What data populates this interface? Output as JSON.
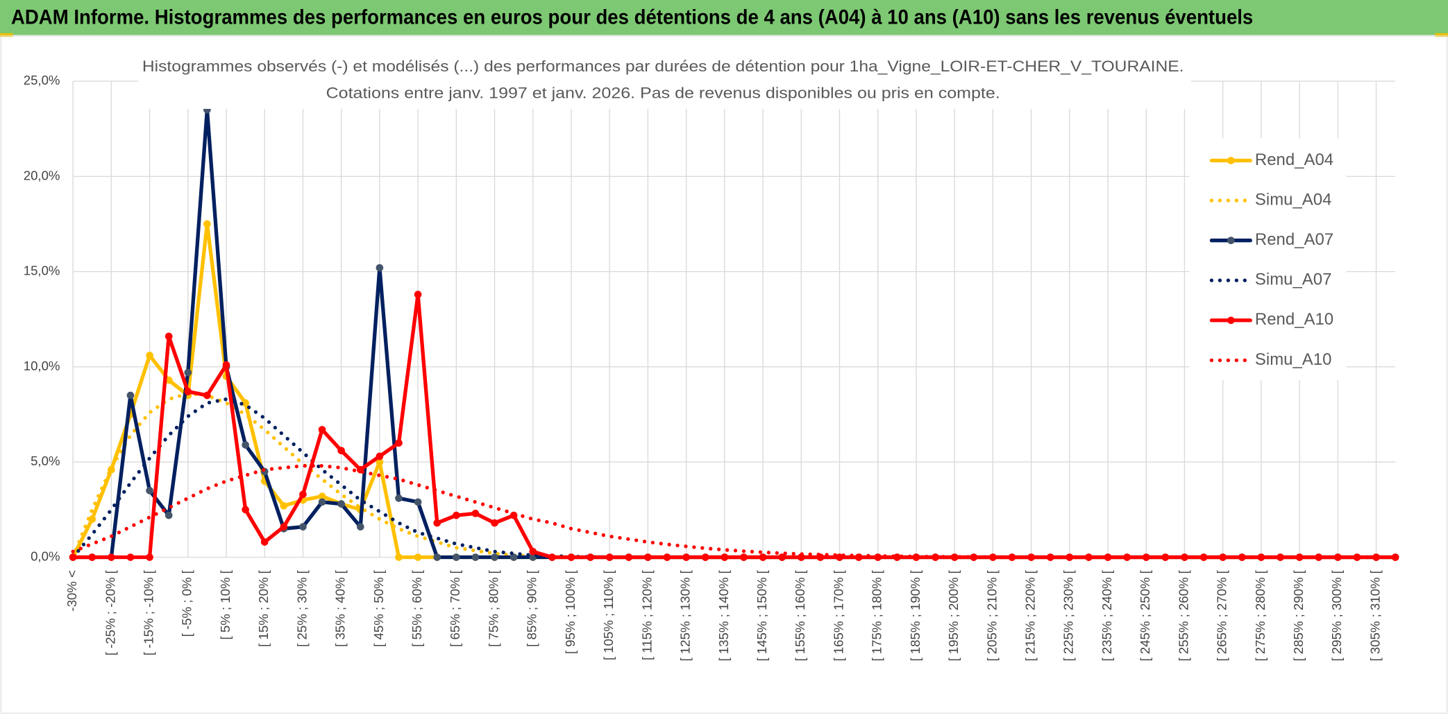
{
  "chart_data": {
    "type": "line",
    "title": "ADAM Informe. Histogrammes des performances en euros pour des détentions de 4 ans (A04) à 10 ans (A10) sans les revenus éventuels",
    "subtitle": [
      "Histogrammes observés (-) et modélisés (...) des performances par durées de détention pour 1ha_Vigne_LOIR-ET-CHER_V_TOURAINE.",
      "Cotations entre janv. 1997 et janv. 2026. Pas de revenus disponibles ou pris en compte."
    ],
    "categories": [
      "-30% <",
      null,
      "[ -25% ; -20% [",
      null,
      "[ -15% ; -10% [",
      null,
      "[ -5% ; 0% [",
      null,
      "[ 5% ; 10% [",
      null,
      "[ 15% ; 20% [",
      null,
      "[ 25% ; 30% [",
      null,
      "[ 35% ; 40% [",
      null,
      "[ 45% ; 50% [",
      null,
      "[ 55% ; 60% [",
      null,
      "[ 65% ; 70% [",
      null,
      "[ 75% ; 80% [",
      null,
      "[ 85% ; 90% [",
      null,
      "[ 95% ; 100% [",
      null,
      "[ 105% ; 110% [",
      null,
      "[ 115% ; 120% [",
      null,
      "[ 125% ; 130% [",
      null,
      "[ 135% ; 140% [",
      null,
      "[ 145% ; 150% [",
      null,
      "[ 155% ; 160% [",
      null,
      "[ 165% ; 170% [",
      null,
      "[ 175% ; 180% [",
      null,
      "[ 185% ; 190% [",
      null,
      "[ 195% ; 200% [",
      null,
      "[ 205% ; 210% [",
      null,
      "[ 215% ; 220% [",
      null,
      "[ 225% ; 230% [",
      null,
      "[ 235% ; 240% [",
      null,
      "[ 245% ; 250% [",
      null,
      "[ 255% ; 260% [",
      null,
      "[ 265% ; 270% [",
      null,
      "[ 275% ; 280% [",
      null,
      "[ 285% ; 290% [",
      null,
      "[ 295% ; 300% [",
      null,
      "[ 305% ; 310% [",
      null
    ],
    "series": [
      {
        "name": "Rend_A04",
        "color": "#ffc000",
        "line_style": "solid",
        "markers": true,
        "values": [
          0,
          2,
          4.6,
          7.5,
          10.6,
          9.3,
          8.5,
          17.5,
          9.5,
          8.1,
          4.0,
          2.7,
          3.0,
          3.2,
          2.8,
          2.5,
          5.0,
          0,
          0,
          0,
          0,
          0,
          0,
          0,
          0,
          0,
          0,
          0,
          0,
          0,
          0,
          0,
          0,
          0,
          0,
          0,
          0,
          0,
          0,
          0,
          0,
          0,
          0,
          0,
          0,
          0,
          0,
          0,
          0,
          0,
          0,
          0,
          0,
          0,
          0,
          0,
          0,
          0,
          0,
          0,
          0,
          0,
          0,
          0,
          0,
          0,
          0,
          0,
          0,
          0
        ]
      },
      {
        "name": "Simu_A04",
        "color": "#ffc000",
        "line_style": "dotted",
        "markers": false,
        "values": [
          0,
          2.5,
          4.7,
          6.4,
          7.6,
          8.3,
          8.6,
          8.5,
          8.1,
          7.5,
          6.7,
          5.8,
          4.9,
          4.1,
          3.3,
          2.6,
          2.0,
          1.5,
          1.1,
          0.8,
          0.5,
          0.35,
          0.2,
          0.1,
          0.05,
          0.02,
          0,
          0,
          0,
          0,
          0,
          0,
          0,
          0,
          0,
          0,
          0,
          0,
          0,
          0,
          0,
          0,
          0,
          0,
          0,
          0,
          0,
          0,
          0,
          0,
          0,
          0,
          0,
          0,
          0,
          0,
          0,
          0,
          0,
          0,
          0,
          0,
          0,
          0,
          0,
          0,
          0,
          0,
          0,
          0
        ]
      },
      {
        "name": "Rend_A07",
        "color": "#002060",
        "line_style": "solid",
        "markers": true,
        "values": [
          0,
          0,
          0,
          8.5,
          3.5,
          2.2,
          9.7,
          23.5,
          10,
          5.9,
          4.5,
          1.5,
          1.6,
          2.9,
          2.8,
          1.6,
          15.2,
          3.1,
          2.9,
          0,
          0,
          0,
          0,
          0,
          0,
          0,
          0,
          0,
          0,
          0,
          0,
          0,
          0,
          0,
          0,
          0,
          0,
          0,
          0,
          0,
          0,
          0,
          0,
          0,
          0,
          0,
          0,
          0,
          0,
          0,
          0,
          0,
          0,
          0,
          0,
          0,
          0,
          0,
          0,
          0,
          0,
          0,
          0,
          0,
          0,
          0,
          0,
          0,
          0,
          0
        ]
      },
      {
        "name": "Simu_A07",
        "color": "#002060",
        "line_style": "dotted",
        "markers": false,
        "values": [
          0,
          1.2,
          2.5,
          3.9,
          5.2,
          6.4,
          7.4,
          8.1,
          8.3,
          8.0,
          7.3,
          6.4,
          5.5,
          4.6,
          3.8,
          3.0,
          2.4,
          1.8,
          1.3,
          1.0,
          0.7,
          0.5,
          0.3,
          0.2,
          0.1,
          0.07,
          0.04,
          0.02,
          0,
          0,
          0,
          0,
          0,
          0,
          0,
          0,
          0,
          0,
          0,
          0,
          0,
          0,
          0,
          0,
          0,
          0,
          0,
          0,
          0,
          0,
          0,
          0,
          0,
          0,
          0,
          0,
          0,
          0,
          0,
          0,
          0,
          0,
          0,
          0,
          0,
          0,
          0,
          0,
          0,
          0
        ]
      },
      {
        "name": "Rend_A10",
        "color": "#ff0000",
        "line_style": "solid",
        "markers": true,
        "values": [
          0,
          0,
          0,
          0,
          0,
          11.6,
          8.7,
          8.5,
          10.1,
          2.5,
          0.8,
          1.6,
          3.3,
          6.7,
          5.6,
          4.6,
          5.3,
          6.0,
          13.8,
          1.8,
          2.2,
          2.3,
          1.8,
          2.2,
          0.3,
          0,
          0,
          0,
          0,
          0,
          0,
          0,
          0,
          0,
          0,
          0,
          0,
          0,
          0,
          0,
          0,
          0,
          0,
          0,
          0,
          0,
          0,
          0,
          0,
          0,
          0,
          0,
          0,
          0,
          0,
          0,
          0,
          0,
          0,
          0,
          0,
          0,
          0,
          0,
          0,
          0,
          0,
          0,
          0,
          0
        ]
      },
      {
        "name": "Simu_A10",
        "color": "#ff0000",
        "line_style": "dotted",
        "markers": false,
        "values": [
          0.3,
          0.7,
          1.1,
          1.6,
          2.1,
          2.6,
          3.1,
          3.6,
          4.0,
          4.3,
          4.6,
          4.7,
          4.8,
          4.8,
          4.7,
          4.5,
          4.3,
          4.1,
          3.8,
          3.5,
          3.2,
          2.9,
          2.6,
          2.3,
          2.0,
          1.8,
          1.5,
          1.3,
          1.1,
          0.95,
          0.8,
          0.68,
          0.57,
          0.47,
          0.39,
          0.32,
          0.26,
          0.21,
          0.17,
          0.14,
          0.11,
          0.09,
          0.07,
          0.05,
          0.04,
          0.03,
          0.02,
          0.02,
          0.01,
          0,
          0,
          0,
          0,
          0,
          0,
          0,
          0,
          0,
          0,
          0,
          0,
          0,
          0,
          0,
          0,
          0,
          0,
          0,
          0,
          0
        ]
      }
    ],
    "ylim": [
      0,
      25
    ],
    "yticks": [
      {
        "value": 0,
        "label": "0,0%"
      },
      {
        "value": 5,
        "label": "5,0%"
      },
      {
        "value": 10,
        "label": "10,0%"
      },
      {
        "value": 15,
        "label": "15,0%"
      },
      {
        "value": 20,
        "label": "20,0%"
      },
      {
        "value": 25,
        "label": "25,0%"
      }
    ],
    "grid": true,
    "legend": "right"
  }
}
